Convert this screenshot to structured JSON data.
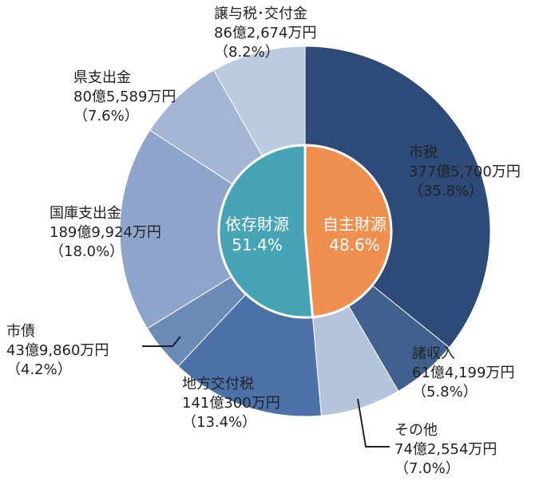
{
  "chart_data": {
    "type": "pie",
    "donut": true,
    "inner": [
      {
        "label": "自主財源",
        "percent": 48.6,
        "color": "#ef9050"
      },
      {
        "label": "依存財源",
        "percent": 51.4,
        "color": "#46a4b4"
      }
    ],
    "outer": [
      {
        "name": "市税",
        "amount": "377億5,700万円",
        "percent": 35.8,
        "pct_label": "（35.8%）",
        "color": "#2d4a78"
      },
      {
        "name": "諸収入",
        "amount": "61億4,199万円",
        "percent": 5.8,
        "pct_label": "（5.8%）",
        "color": "#40608e"
      },
      {
        "name": "その他",
        "amount": "74億2,554万円",
        "percent": 7.0,
        "pct_label": "（7.0%）",
        "color": "#b4c4dc"
      },
      {
        "name": "地方交付税",
        "amount": "141億300万円",
        "percent": 13.4,
        "pct_label": "（13.4%）",
        "color": "#4c71a8"
      },
      {
        "name": "市債",
        "amount": "43億9,860万円",
        "percent": 4.2,
        "pct_label": "（4.2%）",
        "color": "#6c8ab6"
      },
      {
        "name": "国庫支出金",
        "amount": "189億9,924万円",
        "percent": 18.0,
        "pct_label": "（18.0%）",
        "color": "#8ea5cb"
      },
      {
        "name": "県支出金",
        "amount": "80億5,589万円",
        "percent": 7.6,
        "pct_label": "（7.6%）",
        "color": "#a5b6d5"
      },
      {
        "name": "譲与税･交付金",
        "amount": "86億2,674万円",
        "percent": 8.2,
        "pct_label": "（8.2%）",
        "color": "#bccadf"
      }
    ],
    "inner_labels": [
      {
        "title": "依存財源",
        "value": "51.4%"
      },
      {
        "title": "自主財源",
        "value": "48.6%"
      }
    ]
  }
}
